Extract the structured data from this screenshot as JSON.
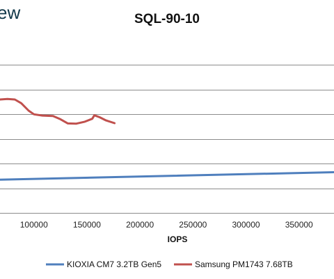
{
  "brand": {
    "text": "ew"
  },
  "chart_data": {
    "type": "line",
    "title": "SQL-90-10",
    "xlabel": "IOPS",
    "ylabel": "",
    "x_ticks": [
      "100000",
      "150000",
      "200000",
      "250000",
      "300000",
      "350000"
    ],
    "x_tick_values": [
      100000,
      150000,
      200000,
      250000,
      300000,
      350000
    ],
    "xlim": [
      68000,
      383000
    ],
    "ylim": [
      0,
      7
    ],
    "gridlines": [
      1,
      2,
      3,
      4,
      5,
      6
    ],
    "grid": true,
    "legend_position": "bottom",
    "series": [
      {
        "name": "KIOXIA CM7 3.2TB Gen5",
        "color": "#4f7fbd",
        "points": [
          [
            68000,
            1.35
          ],
          [
            383000,
            1.65
          ]
        ]
      },
      {
        "name": "Samsung PM1743 7.68TB",
        "color": "#c0504d",
        "points": [
          [
            68000,
            4.6
          ],
          [
            75000,
            4.62
          ],
          [
            82000,
            4.6
          ],
          [
            88000,
            4.45
          ],
          [
            95000,
            4.15
          ],
          [
            100000,
            4.0
          ],
          [
            108000,
            3.95
          ],
          [
            118000,
            3.93
          ],
          [
            125000,
            3.8
          ],
          [
            132000,
            3.63
          ],
          [
            140000,
            3.62
          ],
          [
            148000,
            3.7
          ],
          [
            155000,
            3.82
          ],
          [
            157000,
            3.96
          ],
          [
            162000,
            3.88
          ],
          [
            168000,
            3.75
          ],
          [
            176000,
            3.64
          ]
        ]
      }
    ]
  }
}
